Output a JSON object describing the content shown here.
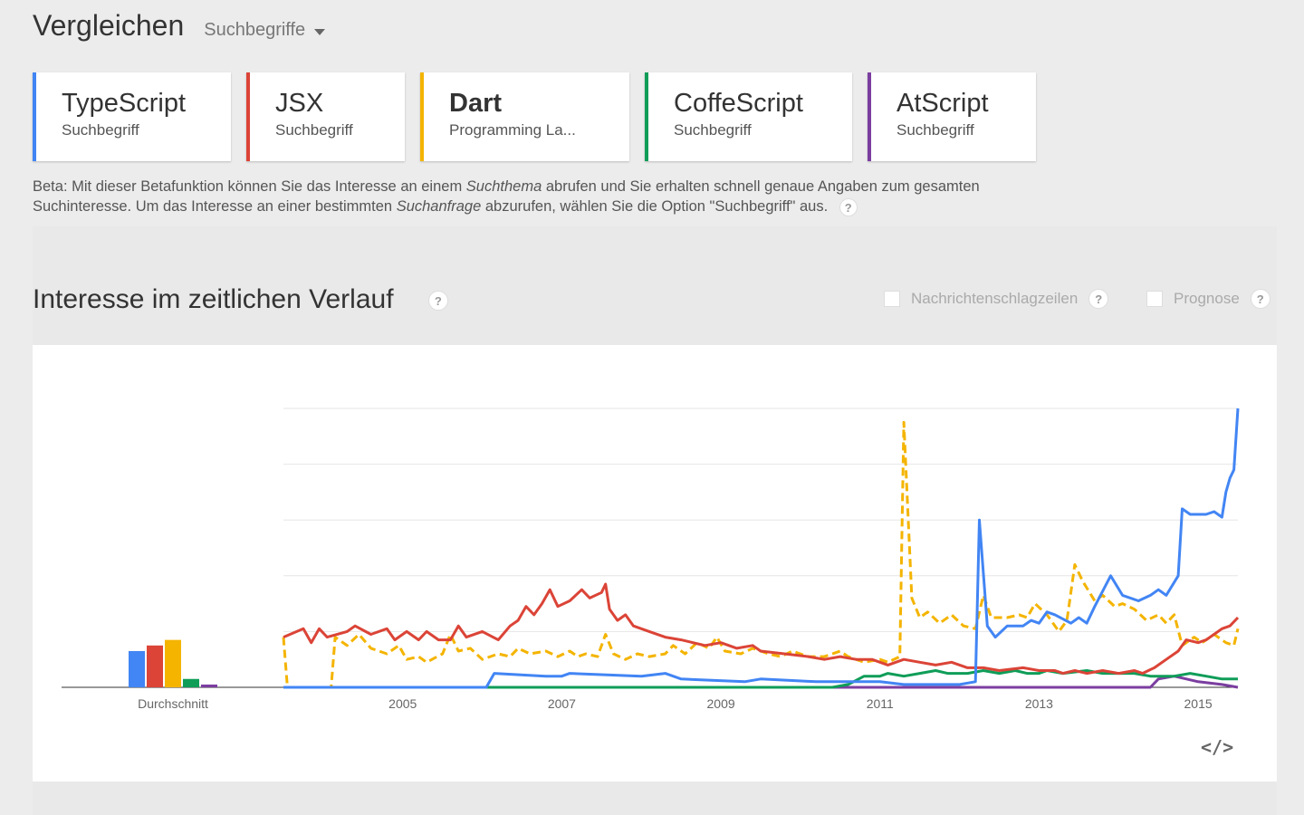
{
  "header": {
    "title": "Vergleichen",
    "dropdown_label": "Suchbegriffe"
  },
  "terms": [
    {
      "name": "TypeScript",
      "sub": "Suchbegriff",
      "color": "#4285f4",
      "bold": false
    },
    {
      "name": "JSX",
      "sub": "Suchbegriff",
      "color": "#db4437",
      "bold": false
    },
    {
      "name": "Dart",
      "sub": "Programming La...",
      "color": "#f4b400",
      "bold": true
    },
    {
      "name": "CoffeScript",
      "sub": "Suchbegriff",
      "color": "#0f9d58",
      "bold": false
    },
    {
      "name": "AtScript",
      "sub": "Suchbegriff",
      "color": "#7b3ea0",
      "bold": false
    }
  ],
  "beta": {
    "part1": "Beta: Mit dieser Betafunktion können Sie das Interesse an einem ",
    "em1": "Suchthema",
    "part2": " abrufen und Sie erhalten schnell genaue Angaben zum gesamten Suchinteresse. Um das Interesse an einer bestimmten ",
    "em2": "Suchanfrage",
    "part3": " abzurufen, wählen Sie die Option \"Suchbegriff\" aus."
  },
  "help_icon": "?",
  "section": {
    "title": "Interesse im zeitlichen Verlauf",
    "opt_news": "Nachrichtenschlagzeilen",
    "opt_forecast": "Prognose",
    "embed_label": "</>"
  },
  "chart_data": {
    "type": "line",
    "average_label": "Durchschnitt",
    "averages": [
      13,
      15,
      17,
      3,
      1
    ],
    "x_ticks": [
      "2005",
      "2007",
      "2009",
      "2011",
      "2013",
      "2015"
    ],
    "ylim": [
      0,
      100
    ],
    "x_range": [
      2004.0,
      2016.0
    ],
    "series": [
      {
        "color": "#4285f4",
        "dashed": false,
        "points": [
          [
            2004,
            0
          ],
          [
            2006.55,
            0
          ],
          [
            2006.65,
            5
          ],
          [
            2007.3,
            4
          ],
          [
            2007.5,
            4
          ],
          [
            2007.6,
            5
          ],
          [
            2008.5,
            4
          ],
          [
            2008.8,
            5
          ],
          [
            2009.0,
            3
          ],
          [
            2009.8,
            2
          ],
          [
            2010.0,
            3
          ],
          [
            2010.7,
            2
          ],
          [
            2011.0,
            2
          ],
          [
            2011.2,
            2
          ],
          [
            2011.5,
            2
          ],
          [
            2011.8,
            1
          ],
          [
            2012.2,
            1
          ],
          [
            2012.5,
            1
          ],
          [
            2012.7,
            2
          ],
          [
            2012.75,
            60
          ],
          [
            2012.85,
            22
          ],
          [
            2012.95,
            18
          ],
          [
            2013.1,
            22
          ],
          [
            2013.3,
            22
          ],
          [
            2013.4,
            24
          ],
          [
            2013.5,
            23
          ],
          [
            2013.6,
            27
          ],
          [
            2013.7,
            26
          ],
          [
            2013.9,
            23
          ],
          [
            2014.0,
            25
          ],
          [
            2014.1,
            23
          ],
          [
            2014.2,
            29
          ],
          [
            2014.4,
            40
          ],
          [
            2014.55,
            33
          ],
          [
            2014.75,
            31
          ],
          [
            2014.9,
            33
          ],
          [
            2015.0,
            35
          ],
          [
            2015.1,
            33
          ],
          [
            2015.25,
            40
          ],
          [
            2015.3,
            64
          ],
          [
            2015.4,
            62
          ],
          [
            2015.6,
            62
          ],
          [
            2015.7,
            63
          ],
          [
            2015.8,
            61
          ],
          [
            2015.85,
            70
          ],
          [
            2015.9,
            75
          ],
          [
            2015.95,
            78
          ],
          [
            2016.0,
            100
          ]
        ]
      },
      {
        "color": "#db4437",
        "dashed": false,
        "points": [
          [
            2004,
            18
          ],
          [
            2004.25,
            21
          ],
          [
            2004.35,
            16
          ],
          [
            2004.45,
            21
          ],
          [
            2004.55,
            18
          ],
          [
            2004.8,
            20
          ],
          [
            2004.9,
            22
          ],
          [
            2005.1,
            19
          ],
          [
            2005.3,
            21
          ],
          [
            2005.4,
            17
          ],
          [
            2005.55,
            20
          ],
          [
            2005.7,
            17
          ],
          [
            2005.8,
            20
          ],
          [
            2005.95,
            17
          ],
          [
            2006.1,
            17
          ],
          [
            2006.2,
            22
          ],
          [
            2006.3,
            18
          ],
          [
            2006.5,
            20
          ],
          [
            2006.7,
            17
          ],
          [
            2006.85,
            22
          ],
          [
            2006.95,
            24
          ],
          [
            2007.05,
            29
          ],
          [
            2007.15,
            26
          ],
          [
            2007.25,
            30
          ],
          [
            2007.35,
            35
          ],
          [
            2007.45,
            29
          ],
          [
            2007.6,
            31
          ],
          [
            2007.75,
            35
          ],
          [
            2007.85,
            32
          ],
          [
            2008.0,
            34
          ],
          [
            2008.05,
            37
          ],
          [
            2008.1,
            28
          ],
          [
            2008.2,
            24
          ],
          [
            2008.3,
            26
          ],
          [
            2008.4,
            22
          ],
          [
            2008.6,
            20
          ],
          [
            2008.8,
            18
          ],
          [
            2009.0,
            17
          ],
          [
            2009.3,
            15
          ],
          [
            2009.5,
            16
          ],
          [
            2009.7,
            14
          ],
          [
            2009.9,
            15
          ],
          [
            2010.0,
            13
          ],
          [
            2010.3,
            12
          ],
          [
            2010.6,
            11
          ],
          [
            2010.8,
            10
          ],
          [
            2011.0,
            11
          ],
          [
            2011.2,
            10
          ],
          [
            2011.4,
            10
          ],
          [
            2011.6,
            8
          ],
          [
            2011.8,
            10
          ],
          [
            2012.0,
            9
          ],
          [
            2012.2,
            8
          ],
          [
            2012.4,
            9
          ],
          [
            2012.6,
            7
          ],
          [
            2012.8,
            7
          ],
          [
            2013.0,
            6
          ],
          [
            2013.3,
            7
          ],
          [
            2013.5,
            6
          ],
          [
            2013.7,
            6
          ],
          [
            2013.8,
            5
          ],
          [
            2013.95,
            6
          ],
          [
            2014.1,
            5
          ],
          [
            2014.3,
            6
          ],
          [
            2014.5,
            5
          ],
          [
            2014.7,
            6
          ],
          [
            2014.8,
            5
          ],
          [
            2014.95,
            7
          ],
          [
            2015.1,
            10
          ],
          [
            2015.25,
            13
          ],
          [
            2015.35,
            17
          ],
          [
            2015.5,
            16
          ],
          [
            2015.6,
            17
          ],
          [
            2015.7,
            19
          ],
          [
            2015.8,
            21
          ],
          [
            2015.9,
            22
          ],
          [
            2016.0,
            25
          ]
        ]
      },
      {
        "color": "#f4b400",
        "dashed": true,
        "points": [
          [
            2004,
            18
          ],
          [
            2004.05,
            0
          ],
          [
            2004.6,
            0
          ],
          [
            2004.65,
            18
          ],
          [
            2004.8,
            15
          ],
          [
            2004.95,
            19
          ],
          [
            2005.1,
            14
          ],
          [
            2005.3,
            12
          ],
          [
            2005.45,
            15
          ],
          [
            2005.55,
            10
          ],
          [
            2005.7,
            11
          ],
          [
            2005.8,
            9
          ],
          [
            2006.0,
            12
          ],
          [
            2006.1,
            19
          ],
          [
            2006.2,
            13
          ],
          [
            2006.35,
            14
          ],
          [
            2006.5,
            10
          ],
          [
            2006.7,
            12
          ],
          [
            2006.85,
            11
          ],
          [
            2006.95,
            14
          ],
          [
            2007.1,
            12
          ],
          [
            2007.3,
            13
          ],
          [
            2007.45,
            11
          ],
          [
            2007.6,
            13
          ],
          [
            2007.7,
            11
          ],
          [
            2007.8,
            12
          ],
          [
            2007.95,
            11
          ],
          [
            2008.05,
            19
          ],
          [
            2008.15,
            12
          ],
          [
            2008.3,
            10
          ],
          [
            2008.45,
            12
          ],
          [
            2008.6,
            11
          ],
          [
            2008.8,
            12
          ],
          [
            2008.9,
            15
          ],
          [
            2009.05,
            12
          ],
          [
            2009.2,
            16
          ],
          [
            2009.35,
            14
          ],
          [
            2009.45,
            18
          ],
          [
            2009.55,
            13
          ],
          [
            2009.75,
            12
          ],
          [
            2009.9,
            14
          ],
          [
            2010.1,
            12
          ],
          [
            2010.25,
            11
          ],
          [
            2010.4,
            13
          ],
          [
            2010.6,
            11
          ],
          [
            2010.8,
            11
          ],
          [
            2011.0,
            13
          ],
          [
            2011.1,
            11
          ],
          [
            2011.3,
            9
          ],
          [
            2011.5,
            10
          ],
          [
            2011.6,
            9
          ],
          [
            2011.75,
            11
          ],
          [
            2011.8,
            95
          ],
          [
            2011.9,
            32
          ],
          [
            2012.0,
            25
          ],
          [
            2012.1,
            27
          ],
          [
            2012.25,
            23
          ],
          [
            2012.4,
            26
          ],
          [
            2012.55,
            22
          ],
          [
            2012.7,
            21
          ],
          [
            2012.8,
            33
          ],
          [
            2012.9,
            25
          ],
          [
            2013.1,
            25
          ],
          [
            2013.25,
            26
          ],
          [
            2013.35,
            25
          ],
          [
            2013.45,
            30
          ],
          [
            2013.6,
            26
          ],
          [
            2013.75,
            20
          ],
          [
            2013.85,
            24
          ],
          [
            2013.95,
            44
          ],
          [
            2014.05,
            38
          ],
          [
            2014.2,
            31
          ],
          [
            2014.3,
            33
          ],
          [
            2014.45,
            29
          ],
          [
            2014.55,
            30
          ],
          [
            2014.7,
            28
          ],
          [
            2014.85,
            24
          ],
          [
            2015.0,
            26
          ],
          [
            2015.1,
            23
          ],
          [
            2015.2,
            26
          ],
          [
            2015.3,
            15
          ],
          [
            2015.45,
            18
          ],
          [
            2015.55,
            16
          ],
          [
            2015.7,
            19
          ],
          [
            2015.85,
            16
          ],
          [
            2015.95,
            15
          ],
          [
            2016.0,
            21
          ]
        ]
      },
      {
        "color": "#0f9d58",
        "dashed": false,
        "points": [
          [
            2004,
            0
          ],
          [
            2010.7,
            0
          ],
          [
            2010.9,
            0
          ],
          [
            2011.1,
            1
          ],
          [
            2011.3,
            4
          ],
          [
            2011.5,
            4
          ],
          [
            2011.6,
            5
          ],
          [
            2011.8,
            4
          ],
          [
            2012.0,
            5
          ],
          [
            2012.2,
            6
          ],
          [
            2012.35,
            5
          ],
          [
            2012.6,
            5
          ],
          [
            2012.8,
            6
          ],
          [
            2013.0,
            5
          ],
          [
            2013.2,
            6
          ],
          [
            2013.35,
            5
          ],
          [
            2013.5,
            5
          ],
          [
            2013.6,
            6
          ],
          [
            2013.8,
            5
          ],
          [
            2014.1,
            6
          ],
          [
            2014.3,
            5
          ],
          [
            2014.5,
            5
          ],
          [
            2014.7,
            5
          ],
          [
            2014.9,
            4
          ],
          [
            2015.0,
            4
          ],
          [
            2015.2,
            4
          ],
          [
            2015.4,
            5
          ],
          [
            2015.6,
            4
          ],
          [
            2015.8,
            3
          ],
          [
            2016.0,
            3
          ]
        ]
      },
      {
        "color": "#7b3ea0",
        "dashed": false,
        "points": [
          [
            2004,
            0
          ],
          [
            2014.9,
            0
          ],
          [
            2015.0,
            3
          ],
          [
            2015.2,
            4
          ],
          [
            2015.5,
            2
          ],
          [
            2015.8,
            1
          ],
          [
            2016.0,
            0
          ]
        ]
      }
    ]
  }
}
